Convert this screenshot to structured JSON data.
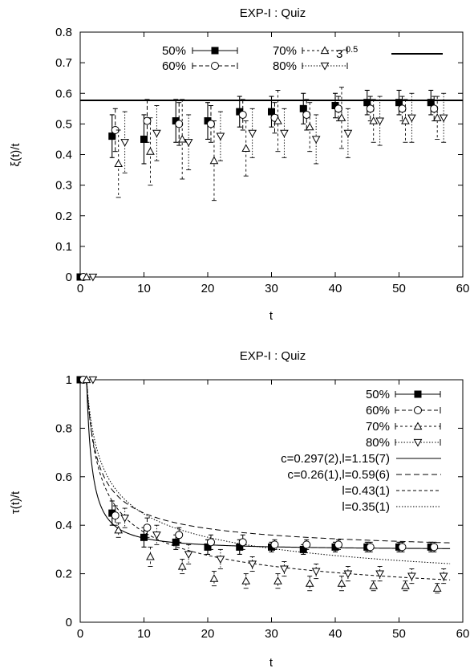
{
  "chart_data": [
    {
      "type": "scatter",
      "title": "EXP-I : Quiz",
      "xlabel": "t",
      "ylabel": "ξ(t)/t",
      "xlim": [
        0,
        60
      ],
      "ylim": [
        0,
        0.8
      ],
      "xticks": [
        "0",
        "10",
        "20",
        "30",
        "40",
        "50",
        "60"
      ],
      "yticks": [
        "0",
        "0.1",
        "0.2",
        "0.3",
        "0.4",
        "0.5",
        "0.6",
        "0.7",
        "0.8"
      ],
      "legend_position": "top",
      "reference_line": {
        "name": "3",
        "exponent": "-0.5",
        "value": 0.577
      },
      "series": [
        {
          "name": "50%",
          "marker": "filled-square",
          "x": [
            0,
            5,
            10,
            15,
            20,
            25,
            30,
            35,
            40,
            45,
            50,
            55
          ],
          "y": [
            0,
            0.46,
            0.45,
            0.51,
            0.51,
            0.54,
            0.54,
            0.55,
            0.56,
            0.57,
            0.57,
            0.57
          ],
          "err": [
            0,
            0.07,
            0.08,
            0.07,
            0.06,
            0.05,
            0.05,
            0.05,
            0.04,
            0.04,
            0.04,
            0.04
          ]
        },
        {
          "name": "60%",
          "marker": "open-circle",
          "x": [
            0.5,
            5.5,
            10.5,
            15.5,
            20.5,
            25.5,
            30.5,
            35.5,
            40.5,
            45.5,
            50.5,
            55.5
          ],
          "y": [
            0,
            0.48,
            0.51,
            0.5,
            0.5,
            0.53,
            0.52,
            0.53,
            0.55,
            0.55,
            0.55,
            0.55
          ],
          "err": [
            0,
            0.07,
            0.07,
            0.07,
            0.06,
            0.05,
            0.05,
            0.05,
            0.04,
            0.04,
            0.04,
            0.04
          ]
        },
        {
          "name": "70%",
          "marker": "open-triangle-up",
          "x": [
            1,
            6,
            11,
            16,
            21,
            26,
            31,
            36,
            41,
            46,
            51,
            56
          ],
          "y": [
            0,
            0.37,
            0.41,
            0.45,
            0.38,
            0.42,
            0.51,
            0.49,
            0.52,
            0.51,
            0.51,
            0.52
          ],
          "err": [
            0,
            0.11,
            0.11,
            0.13,
            0.13,
            0.09,
            0.1,
            0.08,
            0.1,
            0.07,
            0.07,
            0.07
          ]
        },
        {
          "name": "80%",
          "marker": "open-triangle-down",
          "x": [
            2,
            7,
            12,
            17,
            22,
            27,
            32,
            37,
            42,
            47,
            52,
            57
          ],
          "y": [
            0,
            0.44,
            0.47,
            0.44,
            0.46,
            0.47,
            0.47,
            0.45,
            0.47,
            0.51,
            0.52,
            0.52
          ],
          "err": [
            0,
            0.1,
            0.09,
            0.09,
            0.08,
            0.08,
            0.08,
            0.08,
            0.08,
            0.08,
            0.08,
            0.08
          ]
        }
      ]
    },
    {
      "type": "scatter",
      "title": "EXP-I : Quiz",
      "xlabel": "t",
      "ylabel": "τ(t)/t",
      "xlim": [
        0,
        60
      ],
      "ylim": [
        0,
        1
      ],
      "xticks": [
        "0",
        "10",
        "20",
        "30",
        "40",
        "50",
        "60"
      ],
      "yticks": [
        "0",
        "0.2",
        "0.4",
        "0.6",
        "0.8",
        "1"
      ],
      "legend_position": "top-right",
      "series": [
        {
          "name": "50%",
          "marker": "filled-square",
          "x": [
            0,
            5,
            10,
            15,
            20,
            25,
            30,
            35,
            40,
            45,
            50,
            55
          ],
          "y": [
            1,
            0.45,
            0.35,
            0.33,
            0.31,
            0.31,
            0.31,
            0.3,
            0.31,
            0.31,
            0.31,
            0.31
          ],
          "err": [
            0,
            0.05,
            0.04,
            0.03,
            0.03,
            0.03,
            0.02,
            0.02,
            0.02,
            0.02,
            0.02,
            0.02
          ]
        },
        {
          "name": "60%",
          "marker": "open-circle",
          "x": [
            0.5,
            5.5,
            10.5,
            15.5,
            20.5,
            25.5,
            30.5,
            35.5,
            40.5,
            45.5,
            50.5,
            55.5
          ],
          "y": [
            1,
            0.44,
            0.39,
            0.36,
            0.33,
            0.33,
            0.32,
            0.32,
            0.32,
            0.31,
            0.31,
            0.31
          ],
          "err": [
            0,
            0.04,
            0.04,
            0.03,
            0.03,
            0.03,
            0.02,
            0.02,
            0.02,
            0.02,
            0.02,
            0.02
          ]
        },
        {
          "name": "70%",
          "marker": "open-triangle-up",
          "x": [
            1,
            6,
            11,
            16,
            21,
            26,
            31,
            36,
            41,
            46,
            51,
            56
          ],
          "y": [
            1,
            0.38,
            0.27,
            0.23,
            0.18,
            0.17,
            0.17,
            0.16,
            0.16,
            0.15,
            0.15,
            0.14
          ],
          "err": [
            0,
            0.03,
            0.04,
            0.03,
            0.03,
            0.03,
            0.03,
            0.03,
            0.03,
            0.02,
            0.02,
            0.02
          ]
        },
        {
          "name": "80%",
          "marker": "open-triangle-down",
          "x": [
            2,
            7,
            12,
            17,
            22,
            27,
            32,
            37,
            42,
            47,
            52,
            57
          ],
          "y": [
            1,
            0.43,
            0.36,
            0.28,
            0.26,
            0.24,
            0.22,
            0.21,
            0.2,
            0.2,
            0.19,
            0.19
          ],
          "err": [
            0,
            0.04,
            0.04,
            0.04,
            0.04,
            0.03,
            0.03,
            0.03,
            0.03,
            0.03,
            0.03,
            0.03
          ]
        }
      ],
      "fits": [
        {
          "name": "c=0.297(2),l=1.15(7)",
          "style": "solid",
          "c": 0.297,
          "l": 1.15
        },
        {
          "name": "c=0.26(1),l=0.59(6)",
          "style": "dashed",
          "c": 0.26,
          "l": 0.59
        },
        {
          "name": "l=0.43(1)",
          "style": "dashed2",
          "c": 0,
          "l": 0.43
        },
        {
          "name": "l=0.35(1)",
          "style": "dotted",
          "c": 0,
          "l": 0.35
        }
      ]
    }
  ]
}
